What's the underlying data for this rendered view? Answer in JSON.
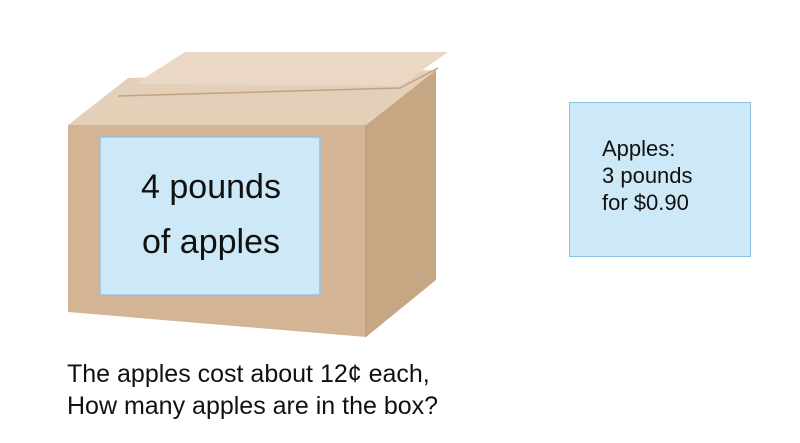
{
  "box": {
    "label_line_1": "4 pounds",
    "label_line_2": "of apples",
    "colors": {
      "front": "#d3b595",
      "side": "#c6a783",
      "top": "#e4cfb8",
      "flap": "#ead8c4",
      "label": "#cde8f6"
    }
  },
  "price_card": {
    "line_1": "Apples:",
    "line_2": "3 pounds",
    "line_3": "for $0.90"
  },
  "question": {
    "line_1": "The apples cost about 12¢ each,",
    "line_2": "How many apples are in the box?"
  }
}
